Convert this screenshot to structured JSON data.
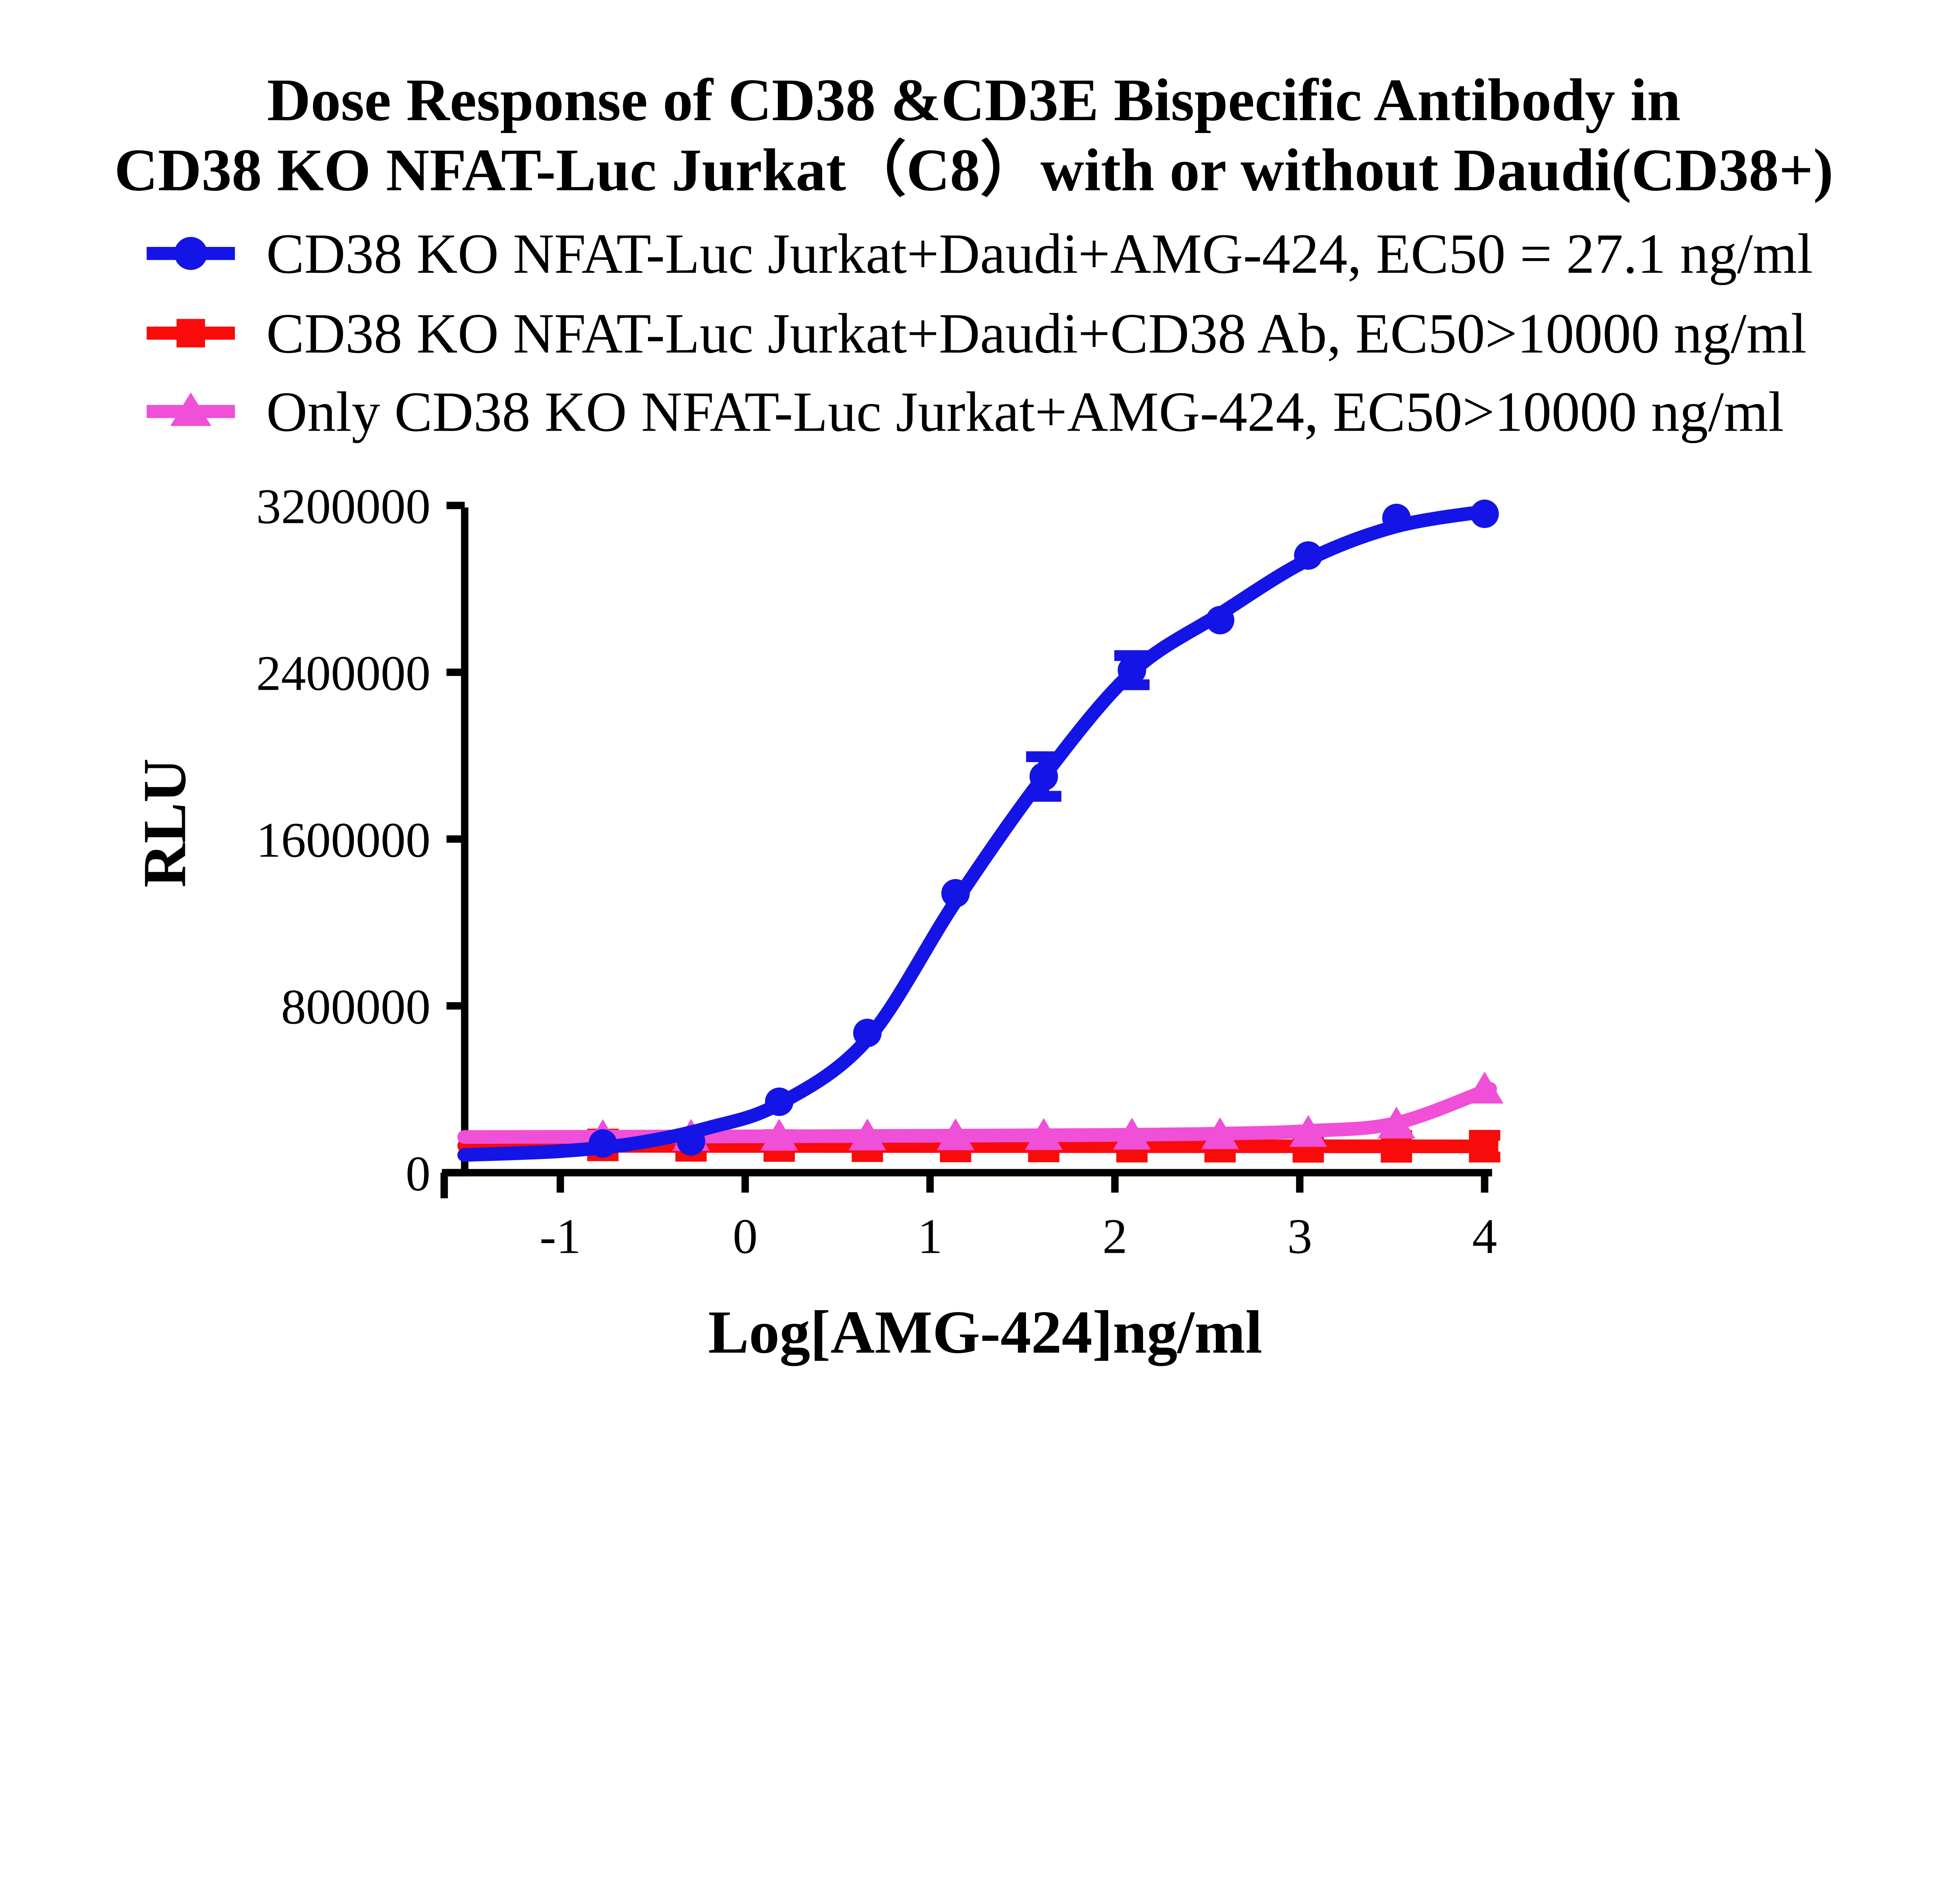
{
  "title": {
    "line1": "Dose Response of CD38 &CD3E Bispecific Antibody in",
    "line2": "CD38 KO NFAT-Luc Jurkat（C8）with or without Daudi(CD38+)"
  },
  "legend": [
    {
      "label": "CD38 KO NFAT-Luc Jurkat+Daudi+AMG-424, EC50 = 27.1 ng/ml",
      "color": "#1414E6",
      "marker": "circle"
    },
    {
      "label": "CD38 KO NFAT-Luc Jurkat+Daudi+CD38 Ab, EC50>10000 ng/ml",
      "color": "#F90B0B",
      "marker": "square"
    },
    {
      "label": "Only CD38 KO NFAT-Luc Jurkat+AMG-424, EC50>10000 ng/ml",
      "color": "#F04FD7",
      "marker": "triangle"
    }
  ],
  "chart_data": {
    "type": "line",
    "title": "Dose Response of CD38 &CD3E Bispecific Antibody in CD38 KO NFAT-Luc Jurkat（C8）with or without Daudi(CD38+)",
    "xlabel": "Log[AMG-424]ng/ml",
    "ylabel": "RLU",
    "xlim": [
      -1.52,
      4.03
    ],
    "ylim": [
      0,
      3200000
    ],
    "x_ticks": [
      -1,
      0,
      1,
      2,
      3,
      4
    ],
    "y_ticks": [
      0,
      800000,
      1600000,
      2400000,
      3200000
    ],
    "grid": false,
    "legend_position": "top-left",
    "draw_order": [
      1,
      2,
      0
    ],
    "series": [
      {
        "name": "CD38 KO NFAT-Luc Jurkat+Daudi+AMG-424",
        "ec50_text": "EC50 = 27.1 ng/ml",
        "color": "#1414E6",
        "marker": "circle",
        "x": [
          -0.77,
          -0.293,
          0.184,
          0.661,
          1.138,
          1.615,
          2.092,
          2.569,
          3.046,
          3.523,
          4.0
        ],
        "y": [
          140000,
          150000,
          340000,
          670000,
          1340000,
          1900000,
          2410000,
          2650000,
          2960000,
          3140000,
          3160000
        ],
        "error_bars": [
          {
            "x": 1.615,
            "y": 1900000,
            "e": 95000
          },
          {
            "x": 2.092,
            "y": 2410000,
            "e": 70000
          }
        ],
        "curve": [
          [
            -1.52,
            85000
          ],
          [
            -1.0,
            103000
          ],
          [
            -0.6,
            140000
          ],
          [
            -0.2,
            215000
          ],
          [
            0.184,
            330000
          ],
          [
            0.661,
            640000
          ],
          [
            1.138,
            1300000
          ],
          [
            1.615,
            1900000
          ],
          [
            2.092,
            2400000
          ],
          [
            2.569,
            2680000
          ],
          [
            3.046,
            2940000
          ],
          [
            3.523,
            3100000
          ],
          [
            4.03,
            3175000
          ]
        ]
      },
      {
        "name": "CD38 KO NFAT-Luc Jurkat+Daudi+CD38 Ab",
        "ec50_text": "EC50>10000 ng/ml",
        "color": "#F90B0B",
        "marker": "square",
        "x": [
          -0.77,
          -0.293,
          0.184,
          0.661,
          1.138,
          1.615,
          2.092,
          2.569,
          3.046,
          3.523,
          4.0
        ],
        "y": [
          133000,
          131000,
          130000,
          129000,
          128000,
          128000,
          127000,
          127000,
          126000,
          126000,
          127000
        ],
        "uniform_error": 52000,
        "curve": [
          [
            -1.52,
            129000
          ],
          [
            4.03,
            126000
          ]
        ]
      },
      {
        "name": "Only CD38 KO NFAT-Luc Jurkat+AMG-424",
        "ec50_text": "EC50>10000 ng/ml",
        "color": "#F04FD7",
        "marker": "triangle",
        "x": [
          -0.77,
          -0.293,
          0.184,
          0.661,
          1.138,
          1.615,
          2.092,
          2.569,
          3.046,
          3.523,
          4.0
        ],
        "y": [
          172000,
          173000,
          174000,
          175000,
          176000,
          177000,
          179000,
          181000,
          192000,
          232000,
          400000
        ],
        "curve": [
          [
            -1.52,
            171000
          ],
          [
            0,
            174000
          ],
          [
            1,
            177000
          ],
          [
            2,
            181000
          ],
          [
            2.569,
            187000
          ],
          [
            3.046,
            200000
          ],
          [
            3.523,
            238000
          ],
          [
            4.03,
            402000
          ]
        ]
      }
    ]
  },
  "colors": {
    "axis": "#000000",
    "background": "#ffffff",
    "blue": "#1414E6",
    "red": "#F90B0B",
    "pink": "#F04FD7"
  }
}
